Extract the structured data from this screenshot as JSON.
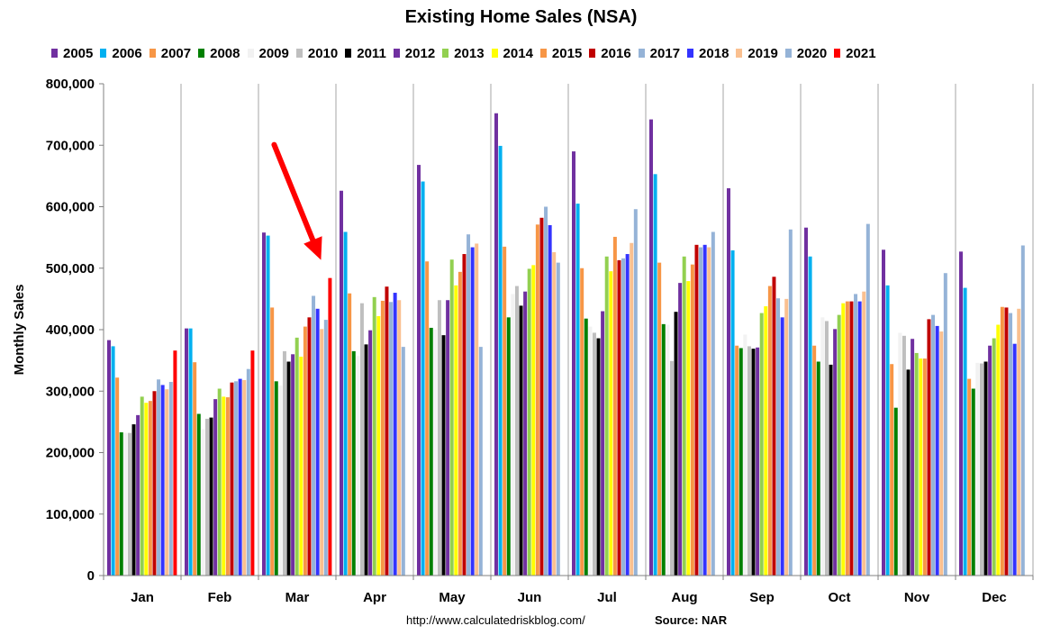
{
  "chart_data": {
    "type": "bar",
    "title": "Existing Home Sales (NSA)",
    "ylabel": "Monthly Sales",
    "xlabel": "",
    "ylim": [
      0,
      800000
    ],
    "yticks": [
      0,
      100000,
      200000,
      300000,
      400000,
      500000,
      600000,
      700000,
      800000
    ],
    "ytick_labels": [
      "0",
      "100,000",
      "200,000",
      "300,000",
      "400,000",
      "500,000",
      "600,000",
      "700,000",
      "800,000"
    ],
    "grid": "vertical",
    "legend": "top",
    "categories": [
      "Jan",
      "Feb",
      "Mar",
      "Apr",
      "May",
      "Jun",
      "Jul",
      "Aug",
      "Sep",
      "Oct",
      "Nov",
      "Dec"
    ],
    "series": [
      {
        "name": "2005",
        "color": "#7030A0",
        "values": [
          383000,
          402000,
          558000,
          626000,
          668000,
          752000,
          690000,
          742000,
          630000,
          566000,
          530000,
          527000
        ]
      },
      {
        "name": "2006",
        "color": "#00B0F0",
        "values": [
          373000,
          402000,
          553000,
          559000,
          641000,
          699000,
          605000,
          653000,
          529000,
          519000,
          472000,
          468000
        ]
      },
      {
        "name": "2007",
        "color": "#F79646",
        "values": [
          322000,
          347000,
          436000,
          459000,
          511000,
          535000,
          500000,
          509000,
          374000,
          374000,
          344000,
          320000
        ]
      },
      {
        "name": "2008",
        "color": "#008000",
        "values": [
          233000,
          263000,
          316000,
          365000,
          403000,
          420000,
          418000,
          409000,
          370000,
          348000,
          273000,
          304000
        ]
      },
      {
        "name": "2009",
        "color": "#F2F2F2",
        "values": [
          232000,
          238000,
          309000,
          357000,
          400000,
          458000,
          405000,
          408000,
          392000,
          420000,
          395000,
          346000
        ]
      },
      {
        "name": "2010",
        "color": "#BFBFBF",
        "values": [
          232000,
          255000,
          365000,
          443000,
          448000,
          471000,
          395000,
          349000,
          373000,
          414000,
          390000,
          345000
        ]
      },
      {
        "name": "2011",
        "color": "#000000",
        "values": [
          246000,
          257000,
          348000,
          376000,
          391000,
          439000,
          386000,
          429000,
          369000,
          343000,
          335000,
          348000
        ]
      },
      {
        "name": "2012",
        "color": "#7030A0",
        "values": [
          261000,
          287000,
          360000,
          399000,
          448000,
          462000,
          430000,
          476000,
          371000,
          401000,
          385000,
          374000
        ]
      },
      {
        "name": "2013",
        "color": "#92D050",
        "values": [
          291000,
          304000,
          387000,
          453000,
          514000,
          499000,
          519000,
          519000,
          427000,
          424000,
          362000,
          386000
        ]
      },
      {
        "name": "2014",
        "color": "#FFFF00",
        "values": [
          281000,
          291000,
          356000,
          422000,
          472000,
          505000,
          495000,
          479000,
          438000,
          443000,
          353000,
          408000
        ]
      },
      {
        "name": "2015",
        "color": "#F79646",
        "values": [
          284000,
          290000,
          405000,
          447000,
          494000,
          571000,
          551000,
          506000,
          471000,
          446000,
          353000,
          437000
        ]
      },
      {
        "name": "2016",
        "color": "#C00000",
        "values": [
          300000,
          314000,
          420000,
          470000,
          523000,
          582000,
          513000,
          538000,
          486000,
          446000,
          417000,
          436000
        ]
      },
      {
        "name": "2017",
        "color": "#95B3D7",
        "values": [
          319000,
          316000,
          455000,
          445000,
          555000,
          600000,
          516000,
          534000,
          451000,
          458000,
          424000,
          427000
        ]
      },
      {
        "name": "2018",
        "color": "#3333FF",
        "values": [
          310000,
          320000,
          434000,
          460000,
          534000,
          570000,
          523000,
          538000,
          420000,
          446000,
          406000,
          377000
        ]
      },
      {
        "name": "2019",
        "color": "#FAC090",
        "values": [
          303000,
          318000,
          401000,
          448000,
          540000,
          526000,
          541000,
          534000,
          450000,
          462000,
          397000,
          434000
        ]
      },
      {
        "name": "2020",
        "color": "#95B3D7",
        "values": [
          315000,
          336000,
          416000,
          372000,
          372000,
          509000,
          596000,
          559000,
          563000,
          572000,
          492000,
          537000
        ]
      },
      {
        "name": "2021",
        "color": "#FF0000",
        "values": [
          366000,
          366000,
          484000,
          null,
          null,
          null,
          null,
          null,
          null,
          null,
          null,
          null
        ]
      }
    ],
    "annotations": [
      {
        "type": "arrow",
        "color": "#FF0000",
        "points_to": {
          "category": "Mar",
          "series": "2021"
        }
      }
    ]
  },
  "footer": {
    "url": "http://www.calculatedriskblog.com/",
    "source": "Source: NAR"
  }
}
